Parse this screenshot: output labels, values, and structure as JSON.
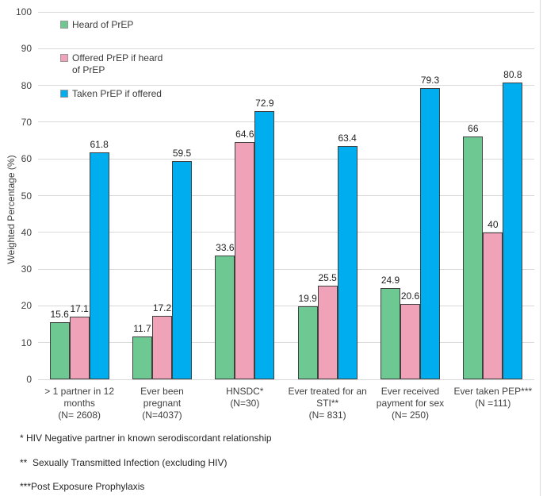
{
  "chart_data": {
    "type": "bar",
    "title": "",
    "ylabel": "Weighted Percentage (%)",
    "ylim": [
      0,
      100
    ],
    "ytick_step": 10,
    "grid": true,
    "legend_position": "inside-top-left",
    "bar_border_color": "#404040",
    "categories": [
      {
        "lines": [
          "> 1 partner in 12",
          "months",
          "(N= 2608)"
        ]
      },
      {
        "lines": [
          "Ever been pregnant",
          "(N=4037)"
        ]
      },
      {
        "lines": [
          "HNSDC*",
          "(N=30)"
        ]
      },
      {
        "lines": [
          "Ever treated for an",
          "STI**",
          "(N= 831)"
        ]
      },
      {
        "lines": [
          "Ever received",
          "payment for sex",
          "(N= 250)"
        ]
      },
      {
        "lines": [
          "Ever taken PEP***",
          "(N =111)"
        ]
      }
    ],
    "series": [
      {
        "key": "heard-of-prep",
        "name": "Heard of PrEP",
        "legend_lines": [
          "Heard of PrEP"
        ],
        "color": "#6EC891",
        "values": [
          15.6,
          11.7,
          33.6,
          19.9,
          24.9,
          66
        ]
      },
      {
        "key": "offered-prep-if-heard",
        "name": "Offered PrEP if heard of PrEP",
        "legend_lines": [
          "Offered PrEP if heard",
          "of PrEP"
        ],
        "color": "#F0A2B9",
        "values": [
          17.1,
          17.2,
          64.6,
          25.5,
          20.6,
          40
        ]
      },
      {
        "key": "taken-prep-if-offered",
        "name": "Taken PrEP if offered",
        "legend_lines": [
          "Taken PrEP if offered"
        ],
        "color": "#00AEEF",
        "values": [
          61.8,
          59.5,
          72.9,
          63.4,
          79.3,
          80.8
        ]
      }
    ]
  },
  "footnotes": [
    "* HIV Negative partner in known serodiscordant relationship",
    "**  Sexually Transmitted Infection (excluding HIV)",
    "***Post Exposure Prophylaxis"
  ]
}
